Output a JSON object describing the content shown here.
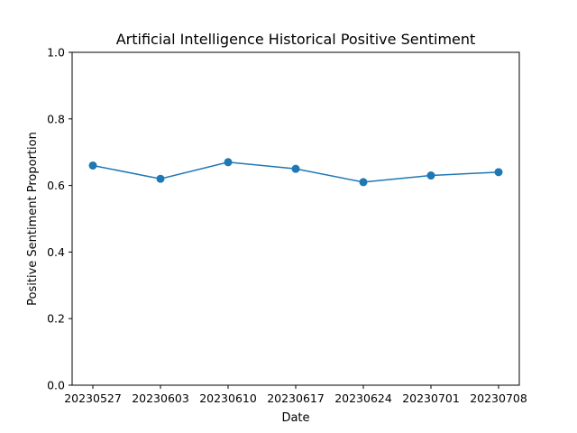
{
  "chart_data": {
    "type": "line",
    "title": "Artificial Intelligence Historical Positive Sentiment",
    "xlabel": "Date",
    "ylabel": "Positive Sentiment Proportion",
    "categories": [
      "20230527",
      "20230603",
      "20230610",
      "20230617",
      "20230624",
      "20230701",
      "20230708"
    ],
    "series": [
      {
        "values": [
          0.66,
          0.62,
          0.67,
          0.65,
          0.61,
          0.63,
          0.64
        ],
        "color": "#1f77b4",
        "marker": "circle"
      }
    ],
    "ylim": [
      0,
      1.0
    ],
    "yticks": [
      "0.0",
      "0.2",
      "0.4",
      "0.6",
      "0.8",
      "1.0"
    ],
    "grid": false,
    "legend": "none"
  }
}
